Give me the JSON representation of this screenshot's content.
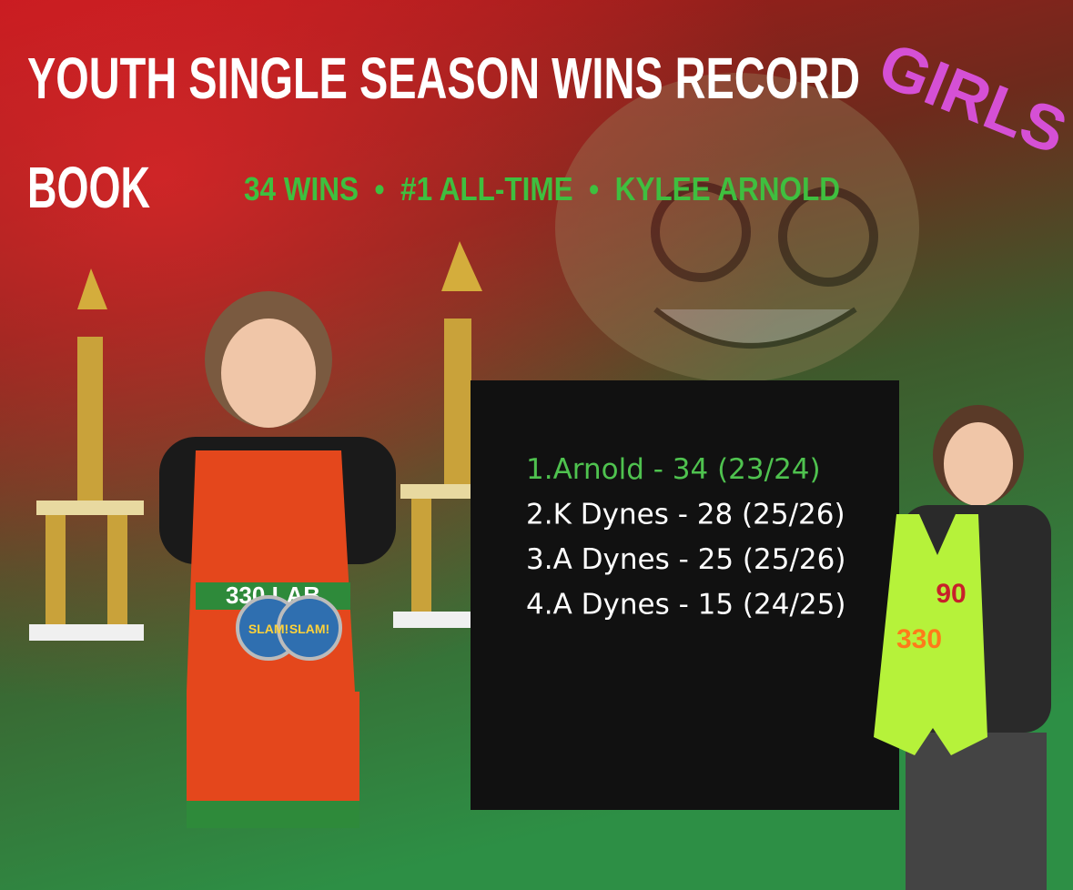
{
  "poster": {
    "title_lines": [
      "YOUTH SINGLE SEASON WINS RECORD",
      "BOOK"
    ],
    "tag": "GIRLS",
    "subtitle": "34 WINS  •  #1 ALL-TIME  •  KYLEE ARNOLD",
    "rankings": [
      "1.Arnold - 34 (23/24)",
      "2.K Dynes - 28 (25/26)",
      "3.A Dynes - 25 (25/26)",
      "4.A Dynes - 15 (24/25)"
    ],
    "singlet_text": "330 LAB",
    "medal_text": "SLAM!",
    "number": "90",
    "team_number": "330"
  }
}
